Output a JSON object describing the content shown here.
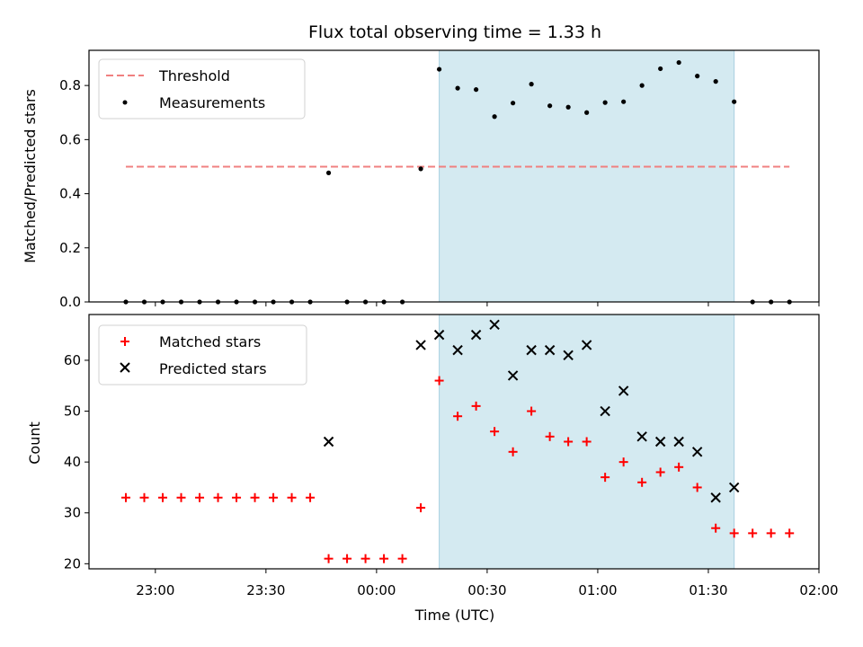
{
  "chart_data": [
    {
      "type": "scatter",
      "title": "Flux total observing time = 1.33 h",
      "ylabel": "Matched/Predicted stars",
      "xlabel": "",
      "x_ticks": [
        "23:00",
        "23:30",
        "00:00",
        "00:30",
        "01:00",
        "01:30",
        "02:00"
      ],
      "xlim_minutes": [
        -78,
        120
      ],
      "ylim": [
        0,
        0.93
      ],
      "y_ticks": [
        0.0,
        0.2,
        0.4,
        0.6,
        0.8
      ],
      "y_tick_labels": [
        "0.0",
        "0.2",
        "0.4",
        "0.6",
        "0.8"
      ],
      "shaded_span_minutes": [
        17,
        97
      ],
      "shade_color": "#d4eaf1",
      "threshold": {
        "name": "Threshold",
        "y": 0.5,
        "x_minutes": [
          -68,
          112
        ],
        "color": "#f08080"
      },
      "series": [
        {
          "name": "Measurements",
          "marker": "dot",
          "color": "#000000",
          "x_minutes": [
            -68,
            -63,
            -58,
            -53,
            -48,
            -43,
            -38,
            -33,
            -28,
            -23,
            -18,
            -13,
            -8,
            -3,
            2,
            7,
            12,
            17,
            22,
            27,
            32,
            37,
            42,
            47,
            52,
            57,
            62,
            67,
            72,
            77,
            82,
            87,
            92,
            97,
            102,
            107,
            112
          ],
          "values": [
            0,
            0,
            0,
            0,
            0,
            0,
            0,
            0,
            0,
            0,
            0,
            0.477,
            0,
            0,
            0,
            0,
            0.492,
            0.86,
            0.79,
            0.785,
            0.685,
            0.735,
            0.805,
            0.725,
            0.72,
            0.7,
            0.737,
            0.74,
            0.8,
            0.862,
            0.885,
            0.835,
            0.815,
            0.74,
            0,
            0,
            0
          ]
        }
      ],
      "legend": {
        "placement": "top-left",
        "entries": [
          "Threshold",
          "Measurements"
        ]
      }
    },
    {
      "type": "scatter",
      "title": "",
      "ylabel": "Count",
      "xlabel": "Time (UTC)",
      "x_ticks": [
        "23:00",
        "23:30",
        "00:00",
        "00:30",
        "01:00",
        "01:30",
        "02:00"
      ],
      "xlim_minutes": [
        -78,
        120
      ],
      "ylim": [
        19,
        69
      ],
      "y_ticks": [
        20,
        30,
        40,
        50,
        60
      ],
      "y_tick_labels": [
        "20",
        "30",
        "40",
        "50",
        "60"
      ],
      "shaded_span_minutes": [
        17,
        97
      ],
      "shade_color": "#d4eaf1",
      "series": [
        {
          "name": "Matched stars",
          "marker": "plus",
          "color": "#ff0000",
          "x_minutes": [
            -68,
            -63,
            -58,
            -53,
            -48,
            -43,
            -38,
            -33,
            -28,
            -23,
            -18,
            -13,
            -8,
            -3,
            2,
            7,
            12,
            17,
            22,
            27,
            32,
            37,
            42,
            47,
            52,
            57,
            62,
            67,
            72,
            77,
            82,
            87,
            92,
            97,
            102,
            107,
            112
          ],
          "values": [
            33,
            33,
            33,
            33,
            33,
            33,
            33,
            33,
            33,
            33,
            33,
            21,
            21,
            21,
            21,
            21,
            31,
            56,
            49,
            51,
            46,
            42,
            50,
            45,
            44,
            44,
            37,
            40,
            36,
            38,
            39,
            35,
            27,
            26,
            26,
            26,
            26
          ]
        },
        {
          "name": "Predicted stars",
          "marker": "x",
          "color": "#000000",
          "x_minutes": [
            -13,
            12,
            17,
            22,
            27,
            32,
            37,
            42,
            47,
            52,
            57,
            62,
            67,
            72,
            77,
            82,
            87,
            92,
            97
          ],
          "values": [
            44,
            63,
            65,
            62,
            65,
            67,
            57,
            62,
            62,
            61,
            63,
            50,
            54,
            45,
            44,
            44,
            42,
            33,
            35
          ]
        }
      ],
      "legend": {
        "placement": "top-left",
        "entries": [
          "Matched stars",
          "Predicted stars"
        ]
      }
    }
  ]
}
